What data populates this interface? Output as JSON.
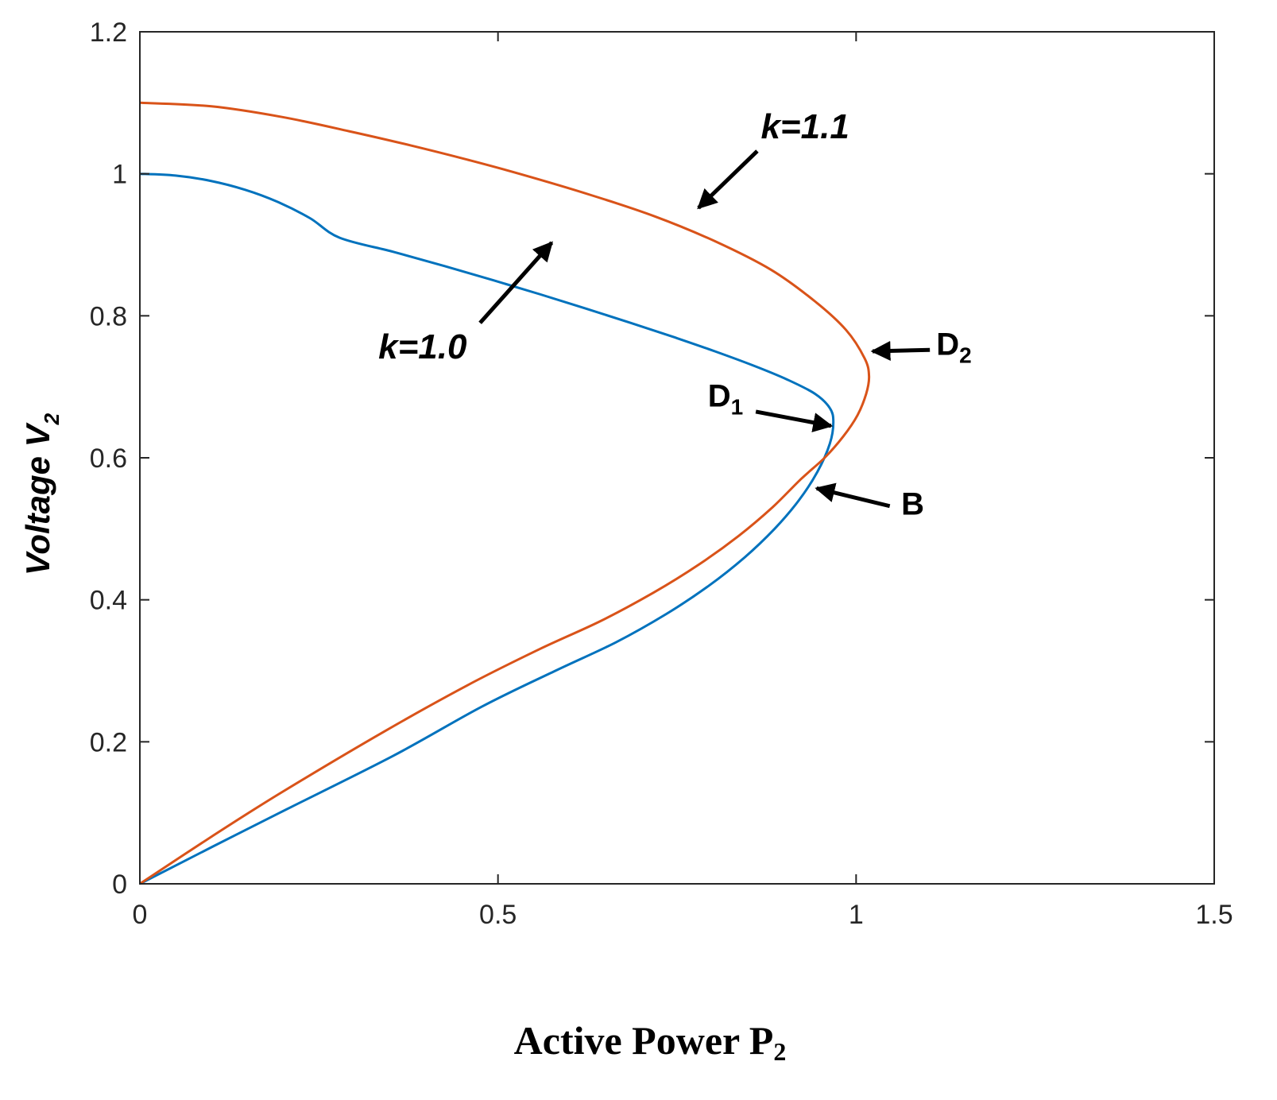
{
  "chart_data": {
    "type": "line",
    "xlabel": {
      "main": "Active Power P",
      "sub": "2"
    },
    "ylabel": {
      "main": "Voltage V",
      "sub": "2"
    },
    "xlim": [
      0,
      1.5
    ],
    "ylim": [
      0,
      1.2
    ],
    "xticks": [
      0,
      0.5,
      1,
      1.5
    ],
    "xtick_labels": [
      "0",
      "0.5",
      "1",
      "1.5"
    ],
    "yticks": [
      0,
      0.2,
      0.4,
      0.6,
      0.8,
      1.0,
      1.2
    ],
    "ytick_labels": [
      "0",
      "0.2",
      "0.4",
      "0.6",
      "0.8",
      "1",
      "1.2"
    ],
    "grid": false,
    "series": [
      {
        "color": "#0072BD",
        "x": [
          0,
          0.0498,
          0.099,
          0.147,
          0.1934,
          0.2375,
          0.2789,
          0.3542,
          0.4256,
          0.4938,
          0.5596,
          0.6234,
          0.6854,
          0.7454,
          0.8028,
          0.8564,
          0.9042,
          0.9428,
          0.9634,
          0.9682,
          0.9634,
          0.9458,
          0.92,
          0.8862,
          0.8446,
          0.7946,
          0.735,
          0.6643,
          0.58,
          0.4783,
          0.3532,
          0.195,
          0.101,
          0
        ],
        "y": [
          1.0,
          0.9975,
          0.99,
          0.9775,
          0.96,
          0.9375,
          0.91,
          0.89,
          0.87,
          0.85,
          0.83,
          0.81,
          0.79,
          0.77,
          0.75,
          0.73,
          0.71,
          0.69,
          0.67,
          0.65,
          0.62,
          0.58,
          0.54,
          0.5,
          0.46,
          0.42,
          0.38,
          0.34,
          0.3,
          0.25,
          0.18,
          0.1,
          0.052,
          0
        ]
      },
      {
        "color": "#D95319",
        "x": [
          0,
          0.1,
          0.1985,
          0.292,
          0.378,
          0.457,
          0.53,
          0.63,
          0.719,
          0.803,
          0.881,
          0.943,
          0.986,
          1.012,
          1.018,
          1.014,
          1.002,
          0.982,
          0.956,
          0.923,
          0.883,
          0.836,
          0.781,
          0.717,
          0.643,
          0.557,
          0.458,
          0.342,
          0.195,
          0.101,
          0
        ],
        "y": [
          1.1,
          1.095,
          1.08,
          1.06,
          1.04,
          1.02,
          1.0,
          0.97,
          0.94,
          0.905,
          0.865,
          0.82,
          0.78,
          0.74,
          0.715,
          0.69,
          0.66,
          0.63,
          0.6,
          0.57,
          0.53,
          0.49,
          0.45,
          0.41,
          0.37,
          0.33,
          0.28,
          0.215,
          0.127,
          0.067,
          0
        ]
      }
    ],
    "annotations": [
      {
        "text": "k=1.1",
        "text_at": [
          0.867,
          1.05
        ],
        "arrow_from": [
          0.862,
          1.032
        ],
        "arrow_to": [
          0.78,
          0.952
        ]
      },
      {
        "text": "k=1.0",
        "text_at": [
          0.333,
          0.74
        ],
        "arrow_from": [
          0.475,
          0.79
        ],
        "arrow_to": [
          0.575,
          0.903
        ]
      },
      {
        "text": "D",
        "sub": "1",
        "text_at": [
          0.793,
          0.672
        ],
        "arrow_from": [
          0.86,
          0.665
        ],
        "arrow_to": [
          0.965,
          0.645
        ]
      },
      {
        "text": "D",
        "sub": "2",
        "text_at": [
          1.112,
          0.745
        ],
        "arrow_from": [
          1.103,
          0.752
        ],
        "arrow_to": [
          1.023,
          0.75
        ]
      },
      {
        "text": "B",
        "text_at": [
          1.063,
          0.52
        ],
        "arrow_from": [
          1.047,
          0.532
        ],
        "arrow_to": [
          0.945,
          0.557
        ]
      }
    ]
  }
}
